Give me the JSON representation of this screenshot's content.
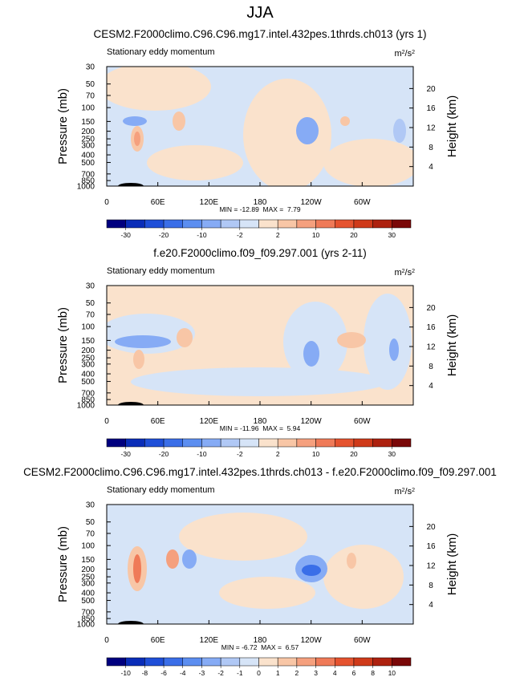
{
  "title": "JJA",
  "chart_data": [
    {
      "type": "contour",
      "title": "CESM2.F2000climo.C96.C96.mg17.intel.432pes.1thrds.ch013 (yrs 1)",
      "subtitle": "Stationary eddy momentum",
      "units": [
        "m",
        "2",
        "/s",
        "2"
      ],
      "ylabel": "Pressure (mb)",
      "y2label": "Height (km)",
      "log_y": true,
      "xlim": [
        0,
        360
      ],
      "xticks": [
        0,
        {
          "value": 60,
          "label": "60E"
        },
        {
          "value": 120,
          "label": "120E"
        },
        180,
        {
          "value": 240,
          "label": "120W"
        },
        {
          "value": 300,
          "label": "60W"
        }
      ],
      "ylim": [
        1000,
        30
      ],
      "yticks": [
        30,
        50,
        70,
        100,
        150,
        200,
        250,
        300,
        400,
        500,
        700,
        850,
        1000
      ],
      "y2lim": [
        0,
        24.5
      ],
      "y2ticks": [
        4,
        8,
        12,
        16,
        20
      ],
      "stats": "MIN = -12.89  MAX =  7.79",
      "colorbar": {
        "levels": [
          -30,
          -20,
          -10,
          -2,
          2,
          10,
          20,
          30
        ],
        "colors": [
          "#00007f",
          "#0a2db8",
          "#1f4fd8",
          "#3a6ee8",
          "#5c8ef0",
          "#86abf5",
          "#b0c8f5",
          "#d6e4f7",
          "#fae2cc",
          "#f8c6a6",
          "#f5a07e",
          "#ef7a58",
          "#e5532f",
          "#cf3a1a",
          "#ad210f",
          "#7a0808"
        ]
      }
    },
    {
      "type": "contour",
      "title": "f.e20.F2000climo.f09_f09.297.001 (yrs 2-11)",
      "subtitle": "Stationary eddy momentum",
      "units": [
        "m",
        "2",
        "/s",
        "2"
      ],
      "ylabel": "Pressure (mb)",
      "y2label": "Height (km)",
      "log_y": true,
      "xlim": [
        0,
        360
      ],
      "xticks": [
        0,
        {
          "value": 60,
          "label": "60E"
        },
        {
          "value": 120,
          "label": "120E"
        },
        180,
        {
          "value": 240,
          "label": "120W"
        },
        {
          "value": 300,
          "label": "60W"
        }
      ],
      "ylim": [
        1000,
        30
      ],
      "yticks": [
        30,
        50,
        70,
        100,
        150,
        200,
        250,
        300,
        400,
        500,
        700,
        850,
        1000
      ],
      "y2lim": [
        0,
        24.5
      ],
      "y2ticks": [
        4,
        8,
        12,
        16,
        20
      ],
      "stats": "MIN = -11.96  MAX =  5.94",
      "colorbar": {
        "levels": [
          -30,
          -20,
          -10,
          -2,
          2,
          10,
          20,
          30
        ],
        "colors": [
          "#00007f",
          "#0a2db8",
          "#1f4fd8",
          "#3a6ee8",
          "#5c8ef0",
          "#86abf5",
          "#b0c8f5",
          "#d6e4f7",
          "#fae2cc",
          "#f8c6a6",
          "#f5a07e",
          "#ef7a58",
          "#e5532f",
          "#cf3a1a",
          "#ad210f",
          "#7a0808"
        ]
      }
    },
    {
      "type": "contour",
      "title": "CESM2.F2000climo.C96.C96.mg17.intel.432pes.1thrds.ch013 - f.e20.F2000climo.f09_f09.297.001",
      "subtitle": "Stationary eddy momentum",
      "units": [
        "m",
        "2",
        "/s",
        "2"
      ],
      "ylabel": "Pressure (mb)",
      "y2label": "Height (km)",
      "log_y": true,
      "xlim": [
        0,
        360
      ],
      "xticks": [
        0,
        {
          "value": 60,
          "label": "60E"
        },
        {
          "value": 120,
          "label": "120E"
        },
        180,
        {
          "value": 240,
          "label": "120W"
        },
        {
          "value": 300,
          "label": "60W"
        }
      ],
      "ylim": [
        1000,
        30
      ],
      "yticks": [
        30,
        50,
        70,
        100,
        150,
        200,
        250,
        300,
        400,
        500,
        700,
        850,
        1000
      ],
      "y2lim": [
        0,
        24.5
      ],
      "y2ticks": [
        4,
        8,
        12,
        16,
        20
      ],
      "stats": "MIN = -6.72  MAX =  6.57",
      "colorbar": {
        "levels": [
          -10,
          -8,
          -6,
          -4,
          -3,
          -2,
          -1,
          0,
          1,
          2,
          3,
          4,
          6,
          8,
          10
        ],
        "colors": [
          "#00007f",
          "#0a2db8",
          "#1f4fd8",
          "#3a6ee8",
          "#5c8ef0",
          "#86abf5",
          "#b0c8f5",
          "#d6e4f7",
          "#fae2cc",
          "#f8c6a6",
          "#f5a07e",
          "#ef7a58",
          "#e5532f",
          "#cf3a1a",
          "#ad210f",
          "#7a0808"
        ]
      }
    }
  ]
}
